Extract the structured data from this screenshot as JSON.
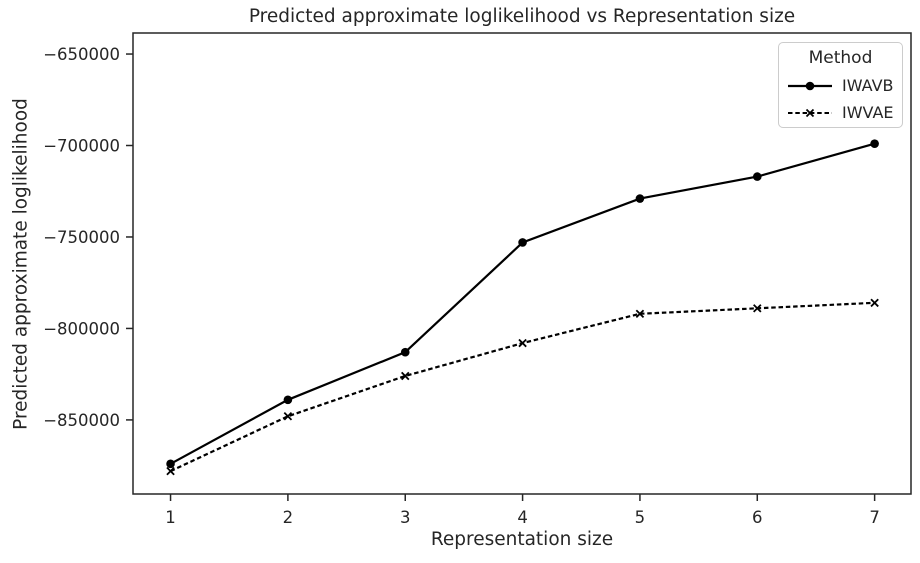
{
  "chart_data": {
    "type": "line",
    "title": "Predicted approximate loglikelihood vs Representation size",
    "xlabel": "Representation size",
    "ylabel": "Predicted approximate loglikelihood",
    "x": [
      1,
      2,
      3,
      4,
      5,
      6,
      7
    ],
    "series": [
      {
        "name": "IWAVB",
        "line_style": "solid",
        "marker": "circle",
        "values": [
          -874000,
          -839000,
          -813000,
          -753000,
          -729000,
          -717000,
          -699000
        ]
      },
      {
        "name": "IWVAE",
        "line_style": "dashed",
        "marker": "x",
        "values": [
          -878000,
          -848000,
          -826000,
          -808000,
          -792000,
          -789000,
          -786000
        ]
      }
    ],
    "xticks": [
      {
        "v": 1,
        "label": "1"
      },
      {
        "v": 2,
        "label": "2"
      },
      {
        "v": 3,
        "label": "3"
      },
      {
        "v": 4,
        "label": "4"
      },
      {
        "v": 5,
        "label": "5"
      },
      {
        "v": 6,
        "label": "6"
      },
      {
        "v": 7,
        "label": "7"
      }
    ],
    "yticks": [
      {
        "v": -650000,
        "label": "−650000"
      },
      {
        "v": -700000,
        "label": "−700000"
      },
      {
        "v": -750000,
        "label": "−750000"
      },
      {
        "v": -800000,
        "label": "−800000"
      },
      {
        "v": -850000,
        "label": "−850000"
      }
    ],
    "xlim": [
      0.68,
      7.31
    ],
    "ylim": [
      -890500,
      -638500
    ],
    "grid": false,
    "legend": {
      "title": "Method",
      "position": "upper right"
    },
    "colors": {
      "line": "#000000",
      "text": "#262626",
      "spine": "#262626",
      "legend_border": "#cccccc",
      "background": "#ffffff"
    }
  }
}
